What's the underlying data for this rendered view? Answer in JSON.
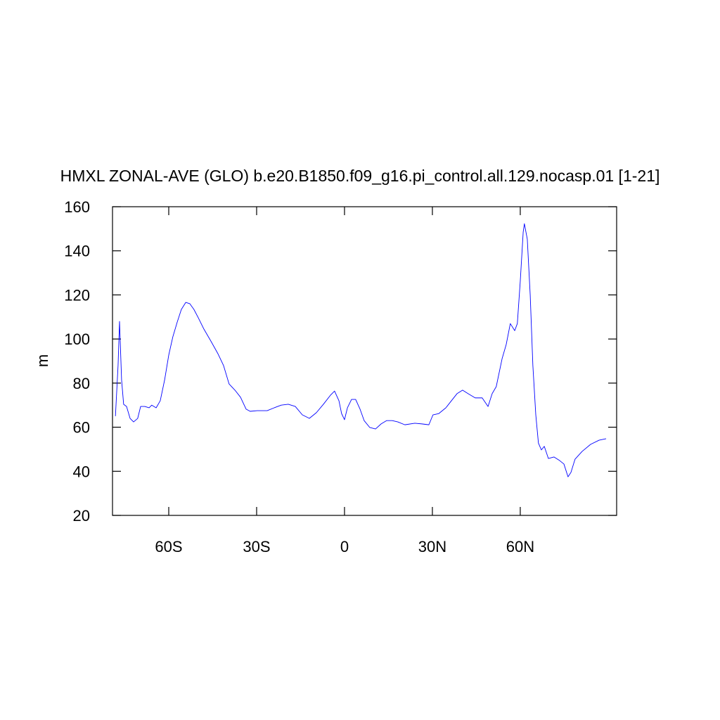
{
  "chart_data": {
    "type": "line",
    "title": "HMXL ZONAL-AVE (GLO) b.e20.B1850.f09_g16.pi_control.all.129.nocasp.01 [1-21]",
    "y_label": "m",
    "color": "#0000ff",
    "xlim": [
      -79.2,
      92.9
    ],
    "ylim": [
      20,
      160
    ],
    "xticks": [
      {
        "value": -60,
        "label": "60S"
      },
      {
        "value": -30,
        "label": "30S"
      },
      0,
      {
        "value": 30,
        "label": "30N"
      },
      {
        "value": 60,
        "label": "60N"
      }
    ],
    "yticks": [
      20,
      40,
      60,
      80,
      100,
      120,
      140,
      160
    ],
    "x": [
      -78.2,
      -77.3,
      -76.8,
      -76.1,
      -75.4,
      -74.4,
      -73.2,
      -72.0,
      -70.6,
      -69.6,
      -68.2,
      -66.7,
      -65.8,
      -64.3,
      -62.9,
      -61.4,
      -60.0,
      -58.6,
      -57.1,
      -55.7,
      -54.2,
      -52.8,
      -51.4,
      -49.9,
      -48.0,
      -45.6,
      -43.2,
      -41.3,
      -39.4,
      -37.4,
      -35.5,
      -33.6,
      -32.2,
      -29.8,
      -26.4,
      -24.0,
      -21.6,
      -19.2,
      -16.8,
      -14.4,
      -12.0,
      -9.6,
      -7.2,
      -4.8,
      -3.4,
      -1.9,
      -1.0,
      0.0,
      1.0,
      2.4,
      3.8,
      5.3,
      6.7,
      8.6,
      10.6,
      12.5,
      14.4,
      16.3,
      18.2,
      20.6,
      24.0,
      26.4,
      28.8,
      30.2,
      32.2,
      34.6,
      36.5,
      38.4,
      40.3,
      42.2,
      44.6,
      47.0,
      49.0,
      50.4,
      51.8,
      53.8,
      55.2,
      56.6,
      58.1,
      59.0,
      60.0,
      61.0,
      61.4,
      62.4,
      63.4,
      64.3,
      65.3,
      66.2,
      67.2,
      68.2,
      69.6,
      71.5,
      73.4,
      74.9,
      76.3,
      77.3,
      78.7,
      81.1,
      84.0,
      86.9,
      89.3
    ],
    "values": [
      65.0,
      88.0,
      108.0,
      81.5,
      70.4,
      69.4,
      64.0,
      62.4,
      64.0,
      69.4,
      69.4,
      68.8,
      70.0,
      68.8,
      72.0,
      81.5,
      92.7,
      101.0,
      107.7,
      113.4,
      116.6,
      116.0,
      113.4,
      109.6,
      104.5,
      99.0,
      93.3,
      88.0,
      79.6,
      76.8,
      73.6,
      68.2,
      67.2,
      67.5,
      67.5,
      68.8,
      70.0,
      70.4,
      69.4,
      65.6,
      64.0,
      66.6,
      70.4,
      74.5,
      76.4,
      72.0,
      66.2,
      63.4,
      68.8,
      72.6,
      72.6,
      68.2,
      63.0,
      59.9,
      59.2,
      61.5,
      63.0,
      63.0,
      62.4,
      61.1,
      61.8,
      61.5,
      61.1,
      65.6,
      66.2,
      68.8,
      72.0,
      75.2,
      76.8,
      75.2,
      73.3,
      73.3,
      69.4,
      75.2,
      78.4,
      91.1,
      97.5,
      107.0,
      103.8,
      107.0,
      126.2,
      148.5,
      152.3,
      145.3,
      119.8,
      88.0,
      65.6,
      52.8,
      49.7,
      51.3,
      45.8,
      46.5,
      44.9,
      43.3,
      37.5,
      39.5,
      45.5,
      49.0,
      52.2,
      54.1,
      54.8
    ]
  }
}
